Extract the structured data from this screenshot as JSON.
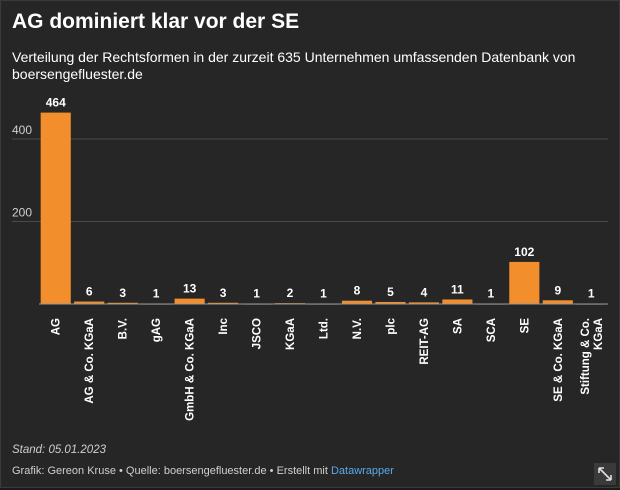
{
  "title": "AG dominiert klar vor der SE",
  "subtitle": "Verteilung der Rechtsformen in der zurzeit 635 Unternehmen umfassenden Datenbank von boersengefluester.de",
  "note": "Stand: 05.01.2023",
  "footer": {
    "grafik": "Grafik: Gereon Kruse",
    "separator": "•",
    "quelle": "Quelle: boersengefluester.de",
    "erstellt": "Erstellt mit",
    "link_label": "Datawrapper"
  },
  "expand_icon": "expand-arrows-icon",
  "colors": {
    "bar": "#f28e2b",
    "background": "#262626",
    "grid": "#4a4a4a",
    "text": "#ffffff"
  },
  "chart_data": {
    "type": "bar",
    "categories": [
      "AG",
      "AG & Co. KGaA",
      "B.V.",
      "gAG",
      "GmbH & Co. KGaA",
      "Inc",
      "JSCO",
      "KGaA",
      "Ltd.",
      "N.V.",
      "plc",
      "REIT-AG",
      "SA",
      "SCA",
      "SE",
      "SE & Co. KGaA",
      "Stiftung & Co. KGaA"
    ],
    "values": [
      464,
      6,
      3,
      1,
      13,
      3,
      1,
      2,
      1,
      8,
      5,
      4,
      11,
      1,
      102,
      9,
      1
    ],
    "y_ticks": [
      200,
      400
    ],
    "ylim": [
      0,
      480
    ],
    "grid": true,
    "data_labels": true
  }
}
